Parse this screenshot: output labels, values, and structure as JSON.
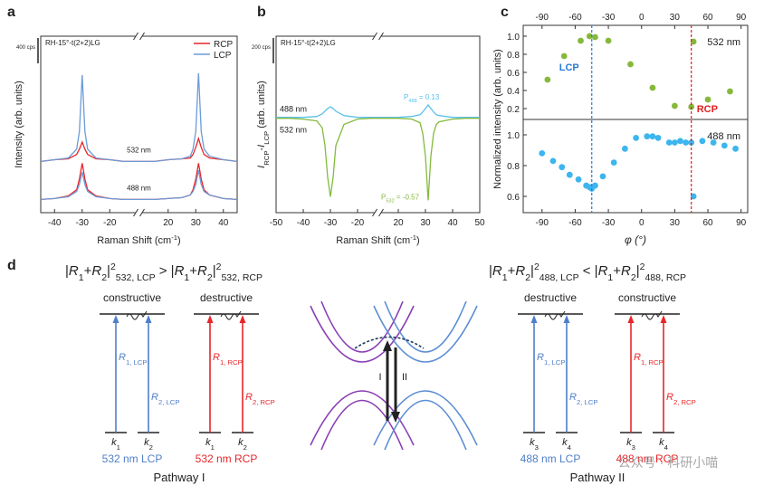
{
  "chart_data": [
    {
      "type": "line",
      "panel_label": "a",
      "sample": "RH-15°-t(2+2)LG",
      "scale_bar": "400 cps",
      "x_label": [
        {
          "t": "Raman Shift (cm",
          "s": ""
        },
        {
          "t": "-1",
          "s": "sup"
        },
        {
          "t": ")",
          "s": ""
        }
      ],
      "y_label": [
        {
          "t": "Intensity (arb. units)",
          "s": ""
        }
      ],
      "xlim": [
        -45,
        45
      ],
      "xbreak": [
        -15,
        15
      ],
      "xticks": [
        -40,
        -30,
        -20,
        20,
        30,
        40
      ],
      "ylim": [
        0,
        10
      ],
      "legend": "upper right",
      "x": [
        -45,
        -40,
        -35,
        -32,
        -31,
        -30,
        -29,
        -28,
        -25,
        -20,
        -15,
        15,
        20,
        25,
        28,
        29,
        30,
        31,
        32,
        33,
        35,
        40,
        45
      ],
      "curve_labels": [
        "532 nm",
        "488 nm"
      ],
      "series": [
        {
          "name": "RCP",
          "color": "#e8262a",
          "curves": [
            [
              2.9,
              3.0,
              3.05,
              3.3,
              3.6,
              4.0,
              3.6,
              3.3,
              3.05,
              3.0,
              2.9,
              2.9,
              3.0,
              3.05,
              3.1,
              3.3,
              3.7,
              4.2,
              3.7,
              3.3,
              3.1,
              3.0,
              2.9
            ],
            [
              0.75,
              0.8,
              0.95,
              1.3,
              1.9,
              2.8,
              1.9,
              1.3,
              0.95,
              0.8,
              0.75,
              0.75,
              0.8,
              0.85,
              1.0,
              1.3,
              1.9,
              2.8,
              1.9,
              1.3,
              1.0,
              0.8,
              0.75
            ]
          ]
        },
        {
          "name": "LCP",
          "color": "#6b9bd8",
          "curves": [
            [
              2.9,
              3.0,
              3.1,
              3.6,
              4.6,
              7.8,
              4.6,
              3.6,
              3.1,
              3.0,
              2.9,
              2.9,
              3.0,
              3.05,
              3.2,
              3.6,
              4.6,
              7.9,
              4.6,
              3.6,
              3.2,
              3.0,
              2.9
            ],
            [
              0.75,
              0.8,
              0.9,
              1.2,
              1.6,
              2.3,
              1.6,
              1.2,
              0.9,
              0.8,
              0.75,
              0.75,
              0.8,
              0.85,
              1.0,
              1.2,
              1.6,
              2.4,
              1.6,
              1.2,
              1.0,
              0.8,
              0.75
            ]
          ]
        }
      ]
    },
    {
      "type": "line",
      "panel_label": "b",
      "sample": "RH-15°-t(2+2)LG",
      "scale_bar": "200 cps",
      "x_label": [
        {
          "t": "Raman Shift (cm",
          "s": ""
        },
        {
          "t": "-1",
          "s": "sup"
        },
        {
          "t": ")",
          "s": ""
        }
      ],
      "y_label": [
        {
          "t": "I",
          "s": "i"
        },
        {
          "t": "RCP",
          "s": "sub"
        },
        {
          "t": "-",
          "s": ""
        },
        {
          "t": "I",
          "s": "i"
        },
        {
          "t": "LCP",
          "s": "sub"
        },
        {
          "t": " (arb. units)",
          "s": ""
        }
      ],
      "xlim": [
        -50,
        50
      ],
      "xbreak": [
        -15,
        15
      ],
      "xticks": [
        -50,
        -40,
        -30,
        -20,
        20,
        30,
        40,
        50
      ],
      "ylim": [
        0,
        10
      ],
      "x": [
        -50,
        -45,
        -40,
        -35,
        -33,
        -32,
        -31,
        -30,
        -29,
        -28,
        -25,
        -20,
        -15,
        15,
        20,
        25,
        28,
        29,
        30,
        31,
        32,
        33,
        34,
        35,
        40,
        45,
        50
      ],
      "series": [
        {
          "name": "488 nm",
          "color": "#5bc0eb",
          "values": [
            5.4,
            5.4,
            5.4,
            5.45,
            5.6,
            5.75,
            5.9,
            6.0,
            5.9,
            5.75,
            5.5,
            5.4,
            5.4,
            5.4,
            5.4,
            5.45,
            5.55,
            5.7,
            5.9,
            6.1,
            5.9,
            5.7,
            5.55,
            5.5,
            5.4,
            5.4,
            5.4
          ]
        },
        {
          "name": "532 nm",
          "color": "#84bb3d",
          "values": [
            5.35,
            5.35,
            5.3,
            5.2,
            4.8,
            3.8,
            2.0,
            0.9,
            2.0,
            3.8,
            5.0,
            5.3,
            5.35,
            5.35,
            5.35,
            5.3,
            5.1,
            4.5,
            3.2,
            0.7,
            3.2,
            4.5,
            5.0,
            5.15,
            5.3,
            5.35,
            5.35
          ]
        }
      ],
      "annotations": [
        {
          "color": "#5bc0eb",
          "parts": [
            {
              "t": "P",
              "s": ""
            },
            {
              "t": "488",
              "s": "sub"
            },
            {
              "t": " = 0.13",
              "s": ""
            }
          ]
        },
        {
          "color": "#84bb3d",
          "parts": [
            {
              "t": "P",
              "s": ""
            },
            {
              "t": "532",
              "s": "sub"
            },
            {
              "t": " = -0.57",
              "s": ""
            }
          ]
        }
      ]
    },
    {
      "type": "scatter",
      "panel_label": "c",
      "x_label": "φ (°)",
      "y_label": "Normalized intensity (arb. units)",
      "xlim": [
        -107,
        96
      ],
      "xticks": [
        -90,
        -60,
        -30,
        0,
        30,
        60,
        90
      ],
      "panels": [
        {
          "ylim": [
            0.08,
            1.12
          ],
          "yticks": [
            0.2,
            0.4,
            0.6,
            0.8,
            {
              "value": 1,
              "label": "1.0"
            }
          ],
          "series": {
            "name": "532 nm",
            "color": "#86b83b",
            "x": [
              -85,
              -70,
              -55,
              -47,
              -42,
              -30,
              -10,
              10,
              30,
              45,
              47,
              60,
              80
            ],
            "values": [
              0.52,
              0.78,
              0.95,
              1.0,
              0.99,
              0.95,
              0.69,
              0.43,
              0.23,
              0.22,
              0.94,
              0.3,
              0.39
            ]
          }
        },
        {
          "ylim": [
            0.494,
            1.1
          ],
          "yticks": [
            0.6,
            0.8,
            {
              "value": 1,
              "label": "1.0"
            }
          ],
          "series": {
            "name": "488 nm",
            "color": "#3db5ee",
            "x": [
              -90,
              -80,
              -72,
              -65,
              -57,
              -50,
              -47,
              -45,
              -42,
              -35,
              -25,
              -15,
              -5,
              5,
              10,
              15,
              25,
              30,
              35,
              40,
              45,
              47,
              55,
              65,
              75,
              85
            ],
            "values": [
              0.88,
              0.83,
              0.79,
              0.74,
              0.71,
              0.67,
              0.66,
              0.65,
              0.67,
              0.73,
              0.82,
              0.91,
              0.98,
              0.99,
              0.99,
              0.98,
              0.95,
              0.95,
              0.96,
              0.95,
              0.95,
              0.6,
              0.96,
              0.95,
              0.93,
              0.91
            ]
          }
        }
      ],
      "vlines": [
        {
          "label": "LCP",
          "x": -45,
          "color": "#2a7ad5"
        },
        {
          "label": "RCP",
          "x": 45,
          "color": "#e02020"
        }
      ]
    }
  ],
  "diagram": {
    "panel_label": "d",
    "formula_left": [
      {
        "t": "|",
        "s": ""
      },
      {
        "t": "R",
        "s": "i"
      },
      {
        "t": "1",
        "s": "sub"
      },
      {
        "t": "+",
        "s": ""
      },
      {
        "t": "R",
        "s": "i"
      },
      {
        "t": "2",
        "s": "sub"
      },
      {
        "t": "|",
        "s": ""
      },
      {
        "t": "2",
        "s": "sup"
      },
      {
        "t": "532, LCP",
        "s": "sub"
      },
      {
        "t": " > |",
        "s": ""
      },
      {
        "t": "R",
        "s": "i"
      },
      {
        "t": "1",
        "s": "sub"
      },
      {
        "t": "+",
        "s": ""
      },
      {
        "t": "R",
        "s": "i"
      },
      {
        "t": "2",
        "s": "sub"
      },
      {
        "t": "|",
        "s": ""
      },
      {
        "t": "2",
        "s": "sup"
      },
      {
        "t": "532, RCP",
        "s": "sub"
      }
    ],
    "formula_right": [
      {
        "t": "|",
        "s": ""
      },
      {
        "t": "R",
        "s": "i"
      },
      {
        "t": "1",
        "s": "sub"
      },
      {
        "t": "+",
        "s": ""
      },
      {
        "t": "R",
        "s": "i"
      },
      {
        "t": "2",
        "s": "sub"
      },
      {
        "t": "|",
        "s": ""
      },
      {
        "t": "2",
        "s": "sup"
      },
      {
        "t": "488, LCP",
        "s": "sub"
      },
      {
        "t": " < |",
        "s": ""
      },
      {
        "t": "R",
        "s": "i"
      },
      {
        "t": "1",
        "s": "sub"
      },
      {
        "t": "+",
        "s": ""
      },
      {
        "t": "R",
        "s": "i"
      },
      {
        "t": "2",
        "s": "sub"
      },
      {
        "t": "|",
        "s": ""
      },
      {
        "t": "2",
        "s": "sup"
      },
      {
        "t": "488, RCP",
        "s": "sub"
      }
    ],
    "schemes": [
      {
        "note": "constructive",
        "color": "#4f7fc9",
        "caption": "532 nm LCP",
        "arrows": [
          [
            {
              "t": "R",
              "s": "i"
            },
            {
              "t": "1, LCP",
              "s": "sub"
            }
          ],
          [
            {
              "t": "R",
              "s": "i"
            },
            {
              "t": "2, LCP",
              "s": "sub"
            }
          ]
        ],
        "k": [
          [
            {
              "t": "k",
              "s": "i"
            },
            {
              "t": "1",
              "s": "sub"
            }
          ],
          [
            {
              "t": "k",
              "s": "i"
            },
            {
              "t": "2",
              "s": "sub"
            }
          ]
        ]
      },
      {
        "note": "destructive",
        "color": "#e8262a",
        "caption": "532 nm RCP",
        "arrows": [
          [
            {
              "t": "R",
              "s": "i"
            },
            {
              "t": "1, RCP",
              "s": "sub"
            }
          ],
          [
            {
              "t": "R",
              "s": "i"
            },
            {
              "t": "2, RCP",
              "s": "sub"
            }
          ]
        ],
        "k": [
          [
            {
              "t": "k",
              "s": "i"
            },
            {
              "t": "1",
              "s": "sub"
            }
          ],
          [
            {
              "t": "k",
              "s": "i"
            },
            {
              "t": "2",
              "s": "sub"
            }
          ]
        ]
      },
      {
        "note": "destructive",
        "color": "#4f7fc9",
        "caption": "488 nm LCP",
        "arrows": [
          [
            {
              "t": "R",
              "s": "i"
            },
            {
              "t": "1, LCP",
              "s": "sub"
            }
          ],
          [
            {
              "t": "R",
              "s": "i"
            },
            {
              "t": "2, LCP",
              "s": "sub"
            }
          ]
        ],
        "k": [
          [
            {
              "t": "k",
              "s": "i"
            },
            {
              "t": "3",
              "s": "sub"
            }
          ],
          [
            {
              "t": "k",
              "s": "i"
            },
            {
              "t": "4",
              "s": "sub"
            }
          ]
        ]
      },
      {
        "note": "constructive",
        "color": "#e8262a",
        "caption": "488 nm RCP",
        "arrows": [
          [
            {
              "t": "R",
              "s": "i"
            },
            {
              "t": "1, RCP",
              "s": "sub"
            }
          ],
          [
            {
              "t": "R",
              "s": "i"
            },
            {
              "t": "2, RCP",
              "s": "sub"
            }
          ]
        ],
        "k": [
          [
            {
              "t": "k",
              "s": "i"
            },
            {
              "t": "3",
              "s": "sub"
            }
          ],
          [
            {
              "t": "k",
              "s": "i"
            },
            {
              "t": "4",
              "s": "sub"
            }
          ]
        ]
      }
    ],
    "pathways": [
      "Pathway I",
      "Pathway II"
    ],
    "band_labels": [
      "I",
      "II"
    ],
    "watermark": "公众号 · 科研小喵"
  }
}
